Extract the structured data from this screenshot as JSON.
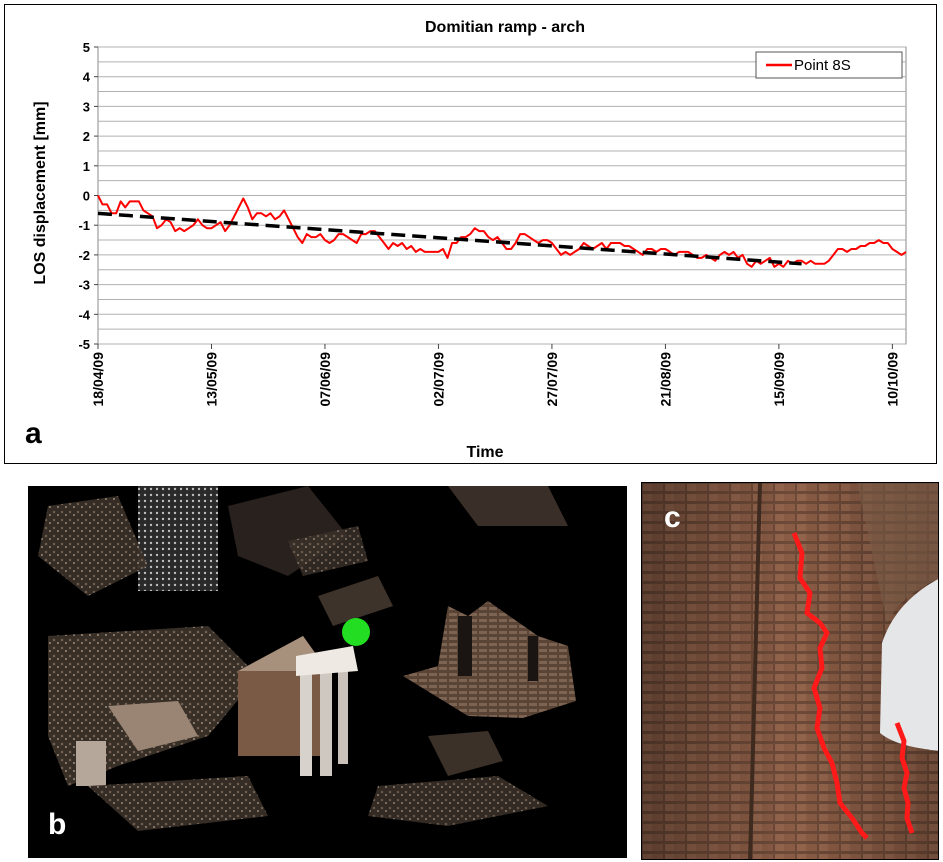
{
  "panels": {
    "a": "a",
    "b": "b",
    "c": "c"
  },
  "chart_data": {
    "type": "line",
    "title": "Domitian ramp - arch",
    "xlabel": "Time",
    "ylabel": "LOS displacement [mm]",
    "ylim": [
      -5,
      5
    ],
    "ytick_step": 0.5,
    "ytick_labels": [
      "5",
      "4",
      "3",
      "2",
      "1",
      "0",
      "-1",
      "-2",
      "-3",
      "-4",
      "-5"
    ],
    "x_tick_labels": [
      "18/04/09",
      "13/05/09",
      "07/06/09",
      "02/07/09",
      "27/07/09",
      "21/08/09",
      "15/09/09",
      "10/10/09"
    ],
    "x_range_days": [
      0,
      178
    ],
    "x_tick_days": [
      0,
      25,
      50,
      75,
      100,
      125,
      150,
      175
    ],
    "grid": "horizontal",
    "legend_position": "top-right",
    "series": [
      {
        "name": "Point 8S",
        "color": "#ff0000",
        "x": [
          0,
          1,
          2,
          3,
          4,
          5,
          6,
          7,
          8,
          9,
          10,
          11,
          12,
          13,
          14,
          15,
          16,
          17,
          18,
          19,
          20,
          21,
          22,
          23,
          24,
          25,
          26,
          27,
          28,
          29,
          30,
          31,
          32,
          33,
          34,
          35,
          36,
          37,
          38,
          39,
          40,
          41,
          42,
          43,
          44,
          45,
          46,
          47,
          48,
          49,
          50,
          51,
          52,
          53,
          54,
          55,
          56,
          57,
          58,
          59,
          60,
          61,
          62,
          63,
          64,
          65,
          66,
          67,
          68,
          69,
          70,
          71,
          72,
          73,
          74,
          75,
          76,
          77,
          78,
          79,
          80,
          81,
          82,
          83,
          84,
          85,
          86,
          87,
          88,
          89,
          90,
          91,
          92,
          93,
          94,
          95,
          96,
          97,
          98,
          99,
          100,
          101,
          102,
          103,
          104,
          105,
          106,
          107,
          108,
          109,
          110,
          111,
          112,
          113,
          114,
          115,
          116,
          117,
          118,
          119,
          120,
          121,
          122,
          123,
          124,
          125,
          126,
          127,
          128,
          129,
          130,
          131,
          132,
          133,
          134,
          135,
          136,
          137,
          138,
          139,
          140,
          141,
          142,
          143,
          144,
          145,
          146,
          147,
          148,
          149,
          150,
          151,
          152,
          153,
          154,
          155,
          156,
          157,
          158,
          159,
          160,
          161,
          162,
          163,
          164,
          165,
          166,
          167,
          168,
          169,
          170,
          171,
          172,
          173,
          174,
          175,
          176,
          177,
          178
        ],
        "y": [
          0.0,
          -0.3,
          -0.3,
          -0.6,
          -0.6,
          -0.2,
          -0.4,
          -0.2,
          -0.2,
          -0.2,
          -0.5,
          -0.6,
          -0.7,
          -1.1,
          -1.0,
          -0.8,
          -0.9,
          -1.2,
          -1.1,
          -1.2,
          -1.1,
          -1.0,
          -0.8,
          -1.0,
          -1.1,
          -1.1,
          -1.0,
          -0.9,
          -1.2,
          -1.0,
          -0.7,
          -0.4,
          -0.1,
          -0.4,
          -0.8,
          -0.6,
          -0.6,
          -0.7,
          -0.6,
          -0.8,
          -0.7,
          -0.5,
          -0.8,
          -1.1,
          -1.4,
          -1.6,
          -1.3,
          -1.4,
          -1.4,
          -1.3,
          -1.5,
          -1.6,
          -1.5,
          -1.3,
          -1.3,
          -1.4,
          -1.5,
          -1.6,
          -1.3,
          -1.3,
          -1.2,
          -1.2,
          -1.4,
          -1.6,
          -1.8,
          -1.6,
          -1.7,
          -1.6,
          -1.8,
          -1.7,
          -1.9,
          -1.8,
          -1.9,
          -1.9,
          -1.9,
          -1.9,
          -1.8,
          -2.1,
          -1.6,
          -1.6,
          -1.4,
          -1.4,
          -1.3,
          -1.1,
          -1.2,
          -1.2,
          -1.4,
          -1.5,
          -1.4,
          -1.6,
          -1.8,
          -1.8,
          -1.6,
          -1.3,
          -1.3,
          -1.4,
          -1.5,
          -1.6,
          -1.5,
          -1.5,
          -1.6,
          -1.8,
          -2.0,
          -1.9,
          -2.0,
          -1.9,
          -1.8,
          -1.6,
          -1.7,
          -1.8,
          -1.7,
          -1.6,
          -1.8,
          -1.6,
          -1.6,
          -1.6,
          -1.7,
          -1.7,
          -1.8,
          -1.9,
          -2.0,
          -1.8,
          -1.8,
          -1.9,
          -1.8,
          -1.8,
          -1.9,
          -2.0,
          -1.9,
          -1.9,
          -1.9,
          -2.0,
          -2.1,
          -2.1,
          -2.0,
          -2.1,
          -2.2,
          -2.0,
          -1.9,
          -2.0,
          -1.9,
          -2.1,
          -2.0,
          -2.3,
          -2.4,
          -2.2,
          -2.3,
          -2.2,
          -2.1,
          -2.4,
          -2.3,
          -2.4,
          -2.2,
          -2.3,
          -2.2,
          -2.2,
          -2.3,
          -2.2,
          -2.3,
          -2.3,
          -2.3,
          -2.2,
          -2.0,
          -1.8,
          -1.8,
          -1.9,
          -1.8,
          -1.8,
          -1.7,
          -1.7,
          -1.6,
          -1.6,
          -1.5,
          -1.6,
          -1.6,
          -1.8,
          -1.9,
          -2.0,
          -1.9
        ]
      }
    ],
    "trendline": {
      "style": "dashed",
      "color": "#000000",
      "x": [
        0,
        155
      ],
      "y": [
        -0.6,
        -2.3
      ]
    }
  }
}
